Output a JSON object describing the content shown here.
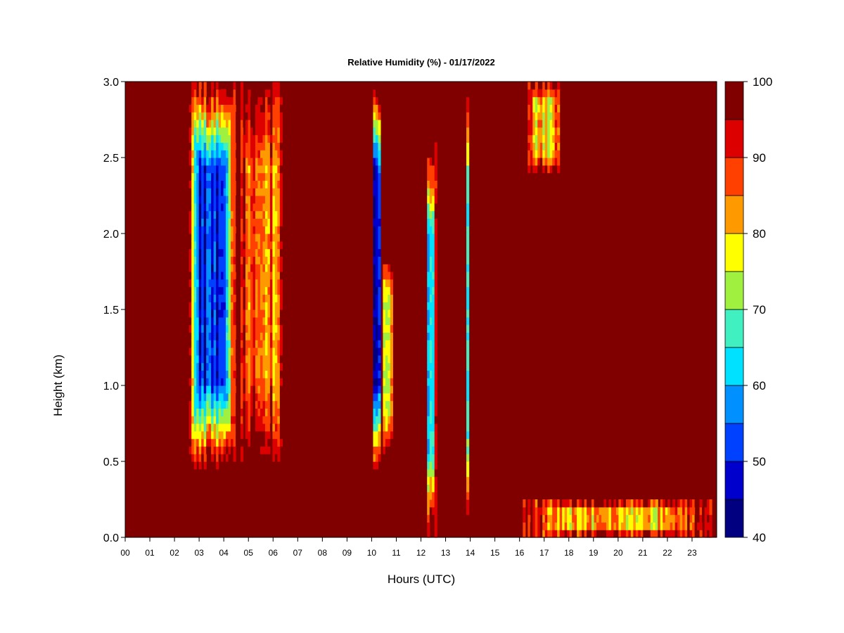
{
  "chart_data": {
    "type": "heatmap",
    "title": "Relative Humidity (%) - 01/17/2022",
    "xlabel": "Hours (UTC)",
    "ylabel": "Height (km)",
    "xlim": [
      0,
      23.9
    ],
    "ylim": [
      0,
      3.0
    ],
    "x_ticks": [
      "00",
      "01",
      "02",
      "03",
      "04",
      "05",
      "06",
      "07",
      "08",
      "09",
      "10",
      "11",
      "12",
      "13",
      "14",
      "15",
      "16",
      "17",
      "18",
      "19",
      "20",
      "21",
      "22",
      "23"
    ],
    "y_ticks": [
      "0.0",
      "0.5",
      "1.0",
      "1.5",
      "2.0",
      "2.5",
      "3.0"
    ],
    "colorbar": {
      "min": 40,
      "max": 100,
      "levels": [
        40,
        45,
        50,
        55,
        60,
        65,
        70,
        75,
        80,
        85,
        90,
        95,
        100
      ],
      "labels": [
        "40",
        "50",
        "60",
        "70",
        "80",
        "90",
        "100"
      ],
      "colors": [
        "#000080",
        "#0000cd",
        "#0040ff",
        "#0090ff",
        "#00e0ff",
        "#40f0c0",
        "#a0f040",
        "#ffff00",
        "#ff9900",
        "#ff4000",
        "#dd0000",
        "#800000"
      ]
    },
    "background_value": 100,
    "features": [
      {
        "hours": [
          2.55,
          4.5
        ],
        "km": [
          0.45,
          3.0
        ],
        "rh": 50
      },
      {
        "hours": [
          4.5,
          6.5
        ],
        "km": [
          0.5,
          3.0
        ],
        "rh": 85
      },
      {
        "hours": [
          10.0,
          10.4
        ],
        "km": [
          0.4,
          3.0
        ],
        "rh": 45
      },
      {
        "hours": [
          10.4,
          10.9
        ],
        "km": [
          0.5,
          1.9
        ],
        "rh": 75
      },
      {
        "hours": [
          12.2,
          12.6
        ],
        "km": [
          0.0,
          2.6
        ],
        "rh": 60
      },
      {
        "hours": [
          13.8,
          13.95
        ],
        "km": [
          0.0,
          3.0
        ],
        "rh": 65
      },
      {
        "hours": [
          16.3,
          17.7
        ],
        "km": [
          2.4,
          3.0
        ],
        "rh": 80
      },
      {
        "hours": [
          16.0,
          23.9
        ],
        "km": [
          0.0,
          0.25
        ],
        "rh": 80
      }
    ]
  }
}
